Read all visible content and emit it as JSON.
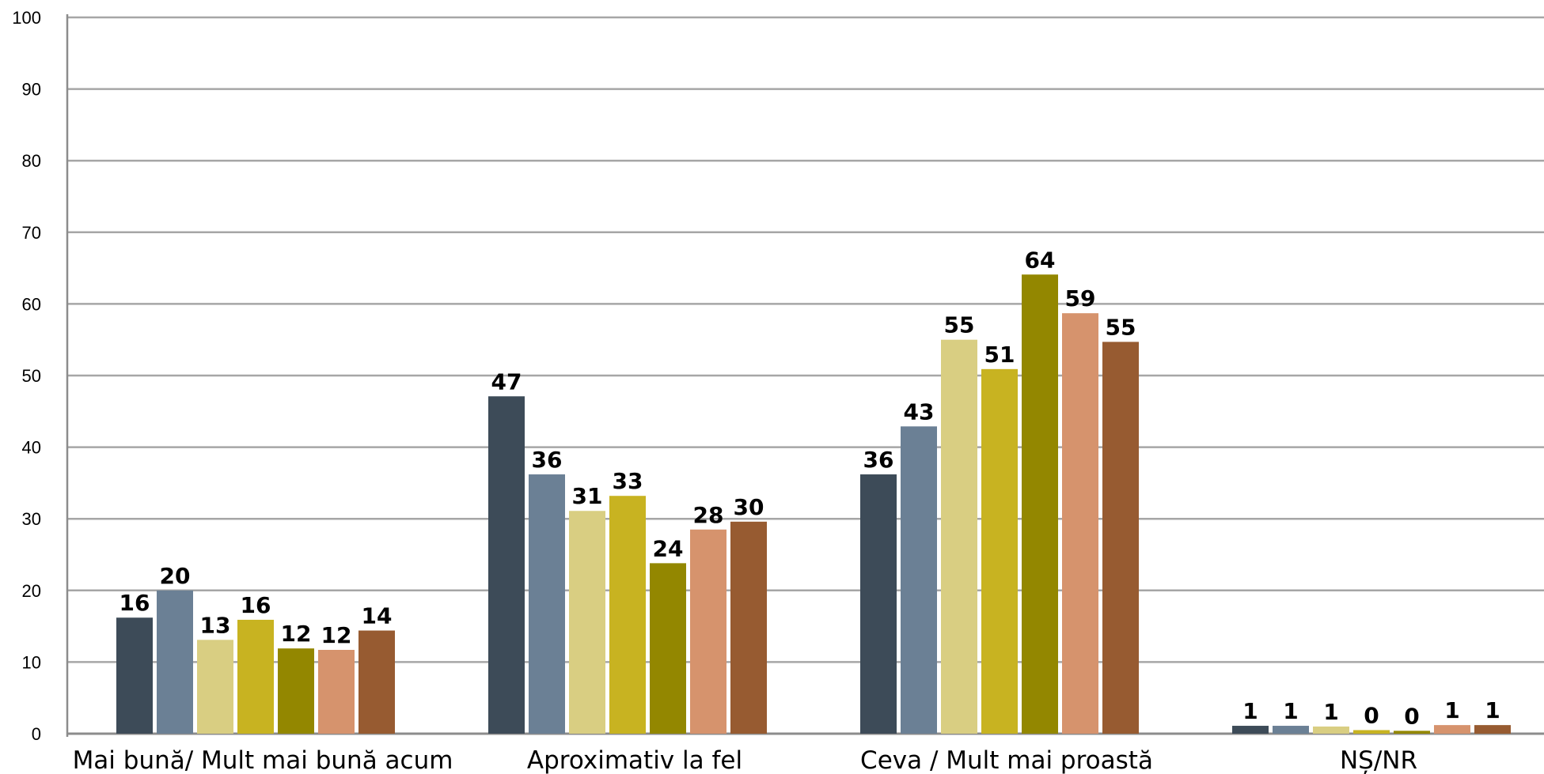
{
  "chart_data": {
    "type": "bar",
    "title": "",
    "xlabel": "",
    "ylabel": "",
    "ylim": [
      0,
      100
    ],
    "yticks": [
      0,
      10,
      20,
      30,
      40,
      50,
      60,
      70,
      80,
      90,
      100
    ],
    "grid": true,
    "legend": "none",
    "categories": [
      "Mai bună/ Mult mai bună acum",
      "Aproximativ la fel",
      "Ceva / Mult mai proastă",
      "NȘ/NR"
    ],
    "series": [
      {
        "color": "#3D4B58",
        "values": [
          16.2,
          47.1,
          36.2,
          1.1
        ]
      },
      {
        "color": "#6B8095",
        "values": [
          20.0,
          36.2,
          42.9,
          1.1
        ]
      },
      {
        "color": "#D9CE82",
        "values": [
          13.1,
          31.1,
          55.0,
          1.0
        ]
      },
      {
        "color": "#C8B321",
        "values": [
          15.9,
          33.2,
          50.9,
          0.5
        ]
      },
      {
        "color": "#938700",
        "values": [
          11.9,
          23.8,
          64.1,
          0.4
        ]
      },
      {
        "color": "#D6936D",
        "values": [
          11.7,
          28.5,
          58.7,
          1.2
        ]
      },
      {
        "color": "#975B31",
        "values": [
          14.4,
          29.6,
          54.7,
          1.2
        ]
      }
    ],
    "data_labels": [
      [
        "16",
        "47",
        "36",
        "1"
      ],
      [
        "20",
        "36",
        "43",
        "1"
      ],
      [
        "13",
        "31",
        "55",
        "1"
      ],
      [
        "16",
        "33",
        "51",
        "0"
      ],
      [
        "12",
        "24",
        "64",
        "0"
      ],
      [
        "12",
        "28",
        "59",
        "1"
      ],
      [
        "14",
        "30",
        "55",
        "1"
      ]
    ]
  }
}
